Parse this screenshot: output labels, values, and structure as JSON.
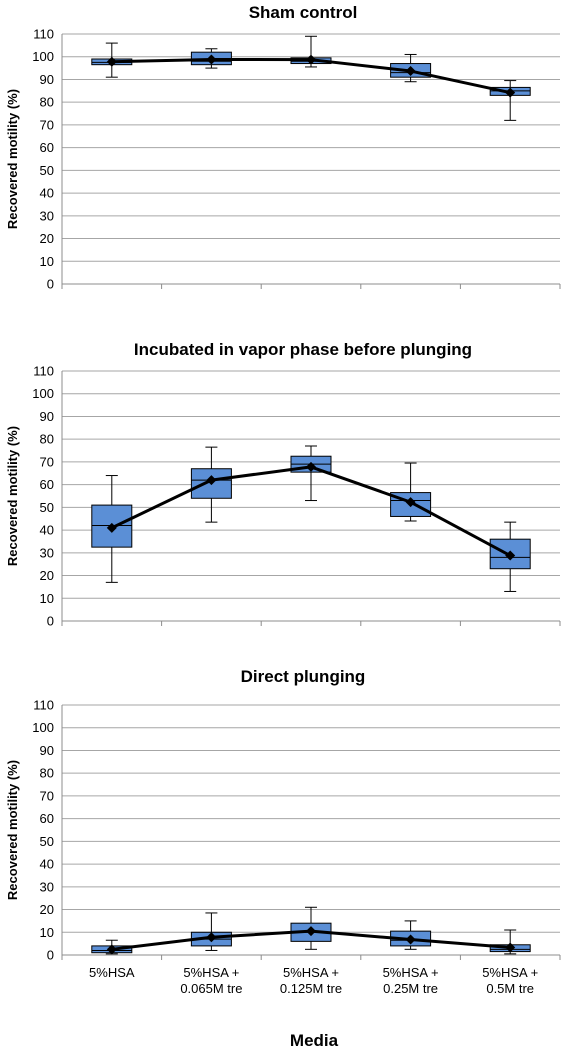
{
  "figure": {
    "shared_xlabel": "Media",
    "categories": [
      "5%HSA",
      "5%HSA + 0.065M tre",
      "5%HSA + 0.125M tre",
      "5%HSA + 0.25M tre",
      "5%HSA + 0.5M tre"
    ],
    "category_lines": [
      [
        "5%HSA"
      ],
      [
        "5%HSA +",
        "0.065M tre"
      ],
      [
        "5%HSA +",
        "0.125M tre"
      ],
      [
        "5%HSA +",
        "0.25M tre"
      ],
      [
        "5%HSA +",
        "0.5M tre"
      ]
    ]
  },
  "chart_data": [
    {
      "type": "box",
      "title": "Sham control",
      "xlabel": "",
      "ylabel": "Recovered motility (%)",
      "ylim": [
        0,
        110
      ],
      "ytick_step": 10,
      "grid": true,
      "box_color": "#5b8fd6",
      "line_color": "#000000",
      "categories": [
        "5%HSA",
        "5%HSA + 0.065M tre",
        "5%HSA + 0.125M tre",
        "5%HSA + 0.25M tre",
        "5%HSA + 0.5M tre"
      ],
      "boxes": [
        {
          "min": 91,
          "q1": 96.5,
          "median": 97.5,
          "q3": 99,
          "max": 106,
          "mean": 97.8
        },
        {
          "min": 95,
          "q1": 96.5,
          "median": 98,
          "q3": 102,
          "max": 103.5,
          "mean": 98.8
        },
        {
          "min": 95.5,
          "q1": 97,
          "median": 98,
          "q3": 99.5,
          "max": 109,
          "mean": 98.7
        },
        {
          "min": 89,
          "q1": 91,
          "median": 93,
          "q3": 97,
          "max": 101,
          "mean": 93.7
        },
        {
          "min": 72,
          "q1": 83,
          "median": 85,
          "q3": 86.5,
          "max": 89.5,
          "mean": 84.2
        }
      ]
    },
    {
      "type": "box",
      "title": "Incubated in vapor phase before plunging",
      "xlabel": "",
      "ylabel": "Recovered motility (%)",
      "ylim": [
        0,
        110
      ],
      "ytick_step": 10,
      "grid": true,
      "box_color": "#5b8fd6",
      "line_color": "#000000",
      "categories": [
        "5%HSA",
        "5%HSA + 0.065M tre",
        "5%HSA + 0.125M tre",
        "5%HSA + 0.25M tre",
        "5%HSA + 0.5M tre"
      ],
      "boxes": [
        {
          "min": 17,
          "q1": 32.5,
          "median": 42,
          "q3": 51,
          "max": 64,
          "mean": 41
        },
        {
          "min": 43.5,
          "q1": 54,
          "median": 62,
          "q3": 67,
          "max": 76.5,
          "mean": 62
        },
        {
          "min": 53,
          "q1": 65.5,
          "median": 69,
          "q3": 72.5,
          "max": 77,
          "mean": 67.8
        },
        {
          "min": 44,
          "q1": 46,
          "median": 53,
          "q3": 56.5,
          "max": 69.5,
          "mean": 52.3
        },
        {
          "min": 13,
          "q1": 23,
          "median": 28,
          "q3": 36,
          "max": 43.5,
          "mean": 28.8
        }
      ]
    },
    {
      "type": "box",
      "title": "Direct plunging",
      "xlabel": "",
      "ylabel": "Recovered motility (%)",
      "ylim": [
        0,
        110
      ],
      "ytick_step": 10,
      "grid": true,
      "box_color": "#5b8fd6",
      "line_color": "#000000",
      "categories": [
        "5%HSA",
        "5%HSA + 0.065M tre",
        "5%HSA + 0.125M tre",
        "5%HSA + 0.25M tre",
        "5%HSA + 0.5M tre"
      ],
      "boxes": [
        {
          "min": 0.5,
          "q1": 1,
          "median": 2,
          "q3": 4,
          "max": 6.5,
          "mean": 2.5
        },
        {
          "min": 2,
          "q1": 4,
          "median": 7,
          "q3": 10,
          "max": 18.5,
          "mean": 7.8
        },
        {
          "min": 2.5,
          "q1": 6,
          "median": 10,
          "q3": 14,
          "max": 21,
          "mean": 10.5
        },
        {
          "min": 2.5,
          "q1": 4,
          "median": 6.5,
          "q3": 10.5,
          "max": 15,
          "mean": 6.8
        },
        {
          "min": 0.5,
          "q1": 1.5,
          "median": 2.5,
          "q3": 4.5,
          "max": 11,
          "mean": 3.3
        }
      ]
    }
  ]
}
